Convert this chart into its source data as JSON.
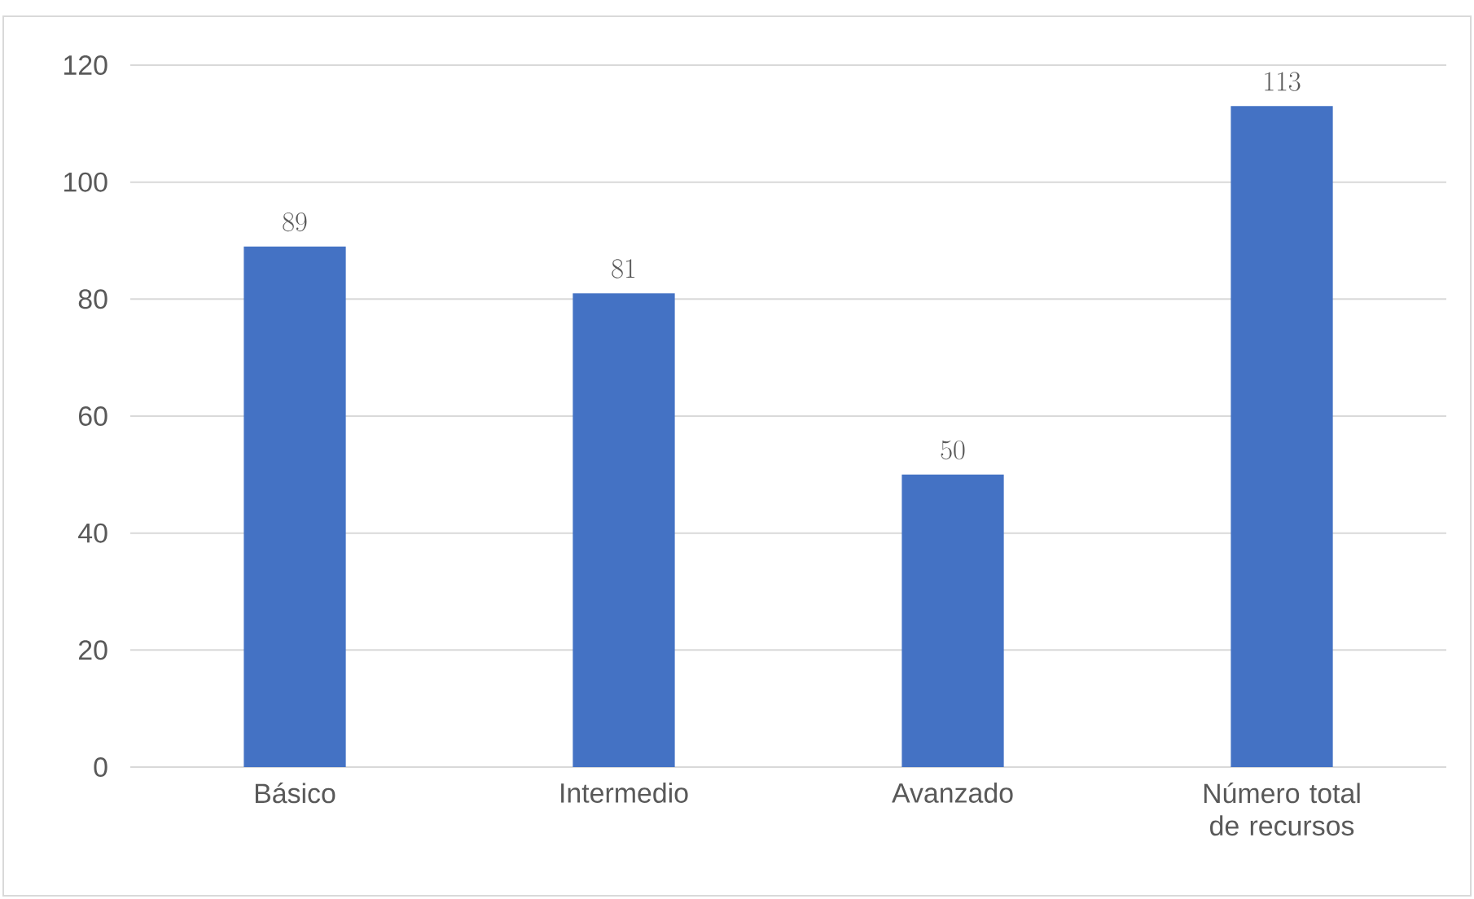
{
  "chart_data": {
    "type": "bar",
    "categories": [
      "Básico",
      "Intermedio",
      "Avanzado",
      "Número total de recursos"
    ],
    "values": [
      89,
      81,
      50,
      113
    ],
    "color": "#4472c4",
    "ylim": [
      0,
      120
    ],
    "yticks": [
      0,
      20,
      40,
      60,
      80,
      100,
      120
    ],
    "grid": "y",
    "data_labels": true
  }
}
